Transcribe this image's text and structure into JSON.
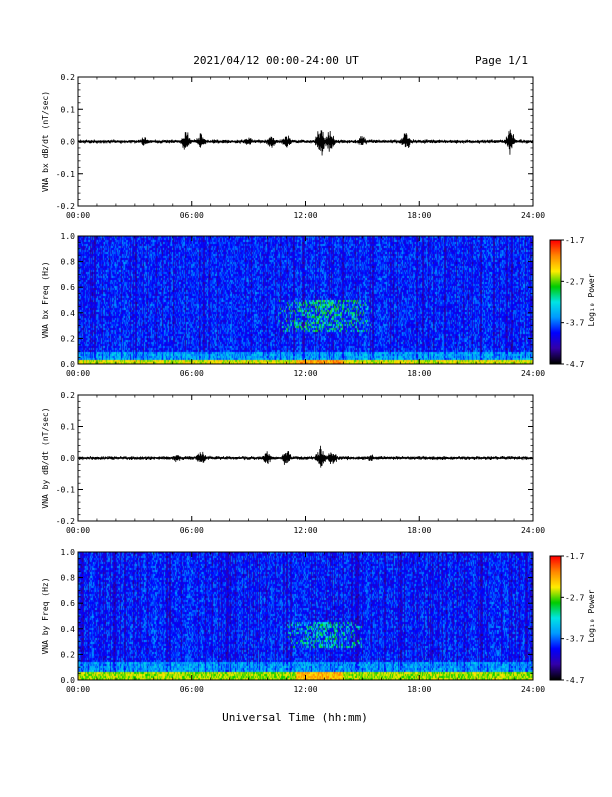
{
  "header": {
    "date_range": "2021/04/12  00:00-24:00 UT",
    "page": "Page 1/1"
  },
  "x_axis": {
    "label": "Universal Time (hh:mm)",
    "ticks": [
      "00:00",
      "06:00",
      "12:00",
      "18:00",
      "24:00"
    ]
  },
  "colors": {
    "trace": "#000000",
    "colormap": [
      "#000000",
      "#3300aa",
      "#0000ff",
      "#0099ff",
      "#00e5e5",
      "#00cc00",
      "#ffee00",
      "#ff8800",
      "#ff0000"
    ]
  },
  "chart_data": [
    {
      "type": "line",
      "ylabel": "VNA bx dB/dt (nT/sec)",
      "xlim": [
        0,
        24
      ],
      "ylim": [
        -0.2,
        0.2
      ],
      "yticks": [
        "0.2",
        "0.1",
        "0.0",
        "-0.1",
        "-0.2"
      ],
      "xticks": [
        "00:00",
        "06:00",
        "12:00",
        "18:00",
        "24:00"
      ],
      "baseline": 0.0,
      "noise_amplitude": 0.005,
      "bursts": [
        {
          "t": 3.5,
          "amp": 0.02
        },
        {
          "t": 5.7,
          "amp": 0.045
        },
        {
          "t": 6.5,
          "amp": 0.035
        },
        {
          "t": 9.0,
          "amp": 0.02
        },
        {
          "t": 10.2,
          "amp": 0.03
        },
        {
          "t": 11.0,
          "amp": 0.03
        },
        {
          "t": 12.8,
          "amp": 0.06
        },
        {
          "t": 13.3,
          "amp": 0.05
        },
        {
          "t": 15.0,
          "amp": 0.025
        },
        {
          "t": 17.3,
          "amp": 0.04
        },
        {
          "t": 22.8,
          "amp": 0.045
        }
      ]
    },
    {
      "type": "heatmap",
      "ylabel": "VNA bx Freq (Hz)",
      "xlim": [
        0,
        24
      ],
      "ylim": [
        0.0,
        1.0
      ],
      "yticks": [
        "1.0",
        "0.8",
        "0.6",
        "0.4",
        "0.2",
        "0.0"
      ],
      "xticks": [
        "00:00",
        "06:00",
        "12:00",
        "18:00",
        "24:00"
      ],
      "colorbar": {
        "label": "Log₁₀ Power",
        "range": [
          -4.7,
          -1.7
        ],
        "ticks": [
          "-1.7",
          "-2.7",
          "-3.7",
          "-4.7"
        ]
      },
      "features": [
        {
          "kind": "low_freq_band",
          "fmax": 0.04,
          "level": -2.5
        },
        {
          "kind": "enhancement",
          "t_start": 10.5,
          "t_end": 15.5,
          "f_low": 0.25,
          "f_high": 0.5,
          "level": -3.0
        }
      ]
    },
    {
      "type": "line",
      "ylabel": "VNA by dB/dt (nT/sec)",
      "xlim": [
        0,
        24
      ],
      "ylim": [
        -0.2,
        0.2
      ],
      "yticks": [
        "0.2",
        "0.1",
        "0.0",
        "-0.1",
        "-0.2"
      ],
      "xticks": [
        "00:00",
        "06:00",
        "12:00",
        "18:00",
        "24:00"
      ],
      "baseline": 0.0,
      "noise_amplitude": 0.005,
      "bursts": [
        {
          "t": 5.2,
          "amp": 0.02
        },
        {
          "t": 6.5,
          "amp": 0.03
        },
        {
          "t": 10.0,
          "amp": 0.03
        },
        {
          "t": 11.0,
          "amp": 0.035
        },
        {
          "t": 12.8,
          "amp": 0.05
        },
        {
          "t": 13.4,
          "amp": 0.04
        },
        {
          "t": 15.5,
          "amp": 0.015
        }
      ]
    },
    {
      "type": "heatmap",
      "ylabel": "VNA by Freq (Hz)",
      "xlim": [
        0,
        24
      ],
      "ylim": [
        0.0,
        1.0
      ],
      "yticks": [
        "1.0",
        "0.8",
        "0.6",
        "0.4",
        "0.2",
        "0.0"
      ],
      "xticks": [
        "00:00",
        "06:00",
        "12:00",
        "18:00",
        "24:00"
      ],
      "colorbar": {
        "label": "Log₁₀ Power",
        "range": [
          -4.7,
          -1.7
        ],
        "ticks": [
          "-1.7",
          "-2.7",
          "-3.7",
          "-4.7"
        ]
      },
      "features": [
        {
          "kind": "low_freq_band",
          "fmax": 0.06,
          "level": -2.6
        },
        {
          "kind": "enhancement",
          "t_start": 11.0,
          "t_end": 15.0,
          "f_low": 0.25,
          "f_high": 0.45,
          "level": -3.1
        }
      ]
    }
  ]
}
